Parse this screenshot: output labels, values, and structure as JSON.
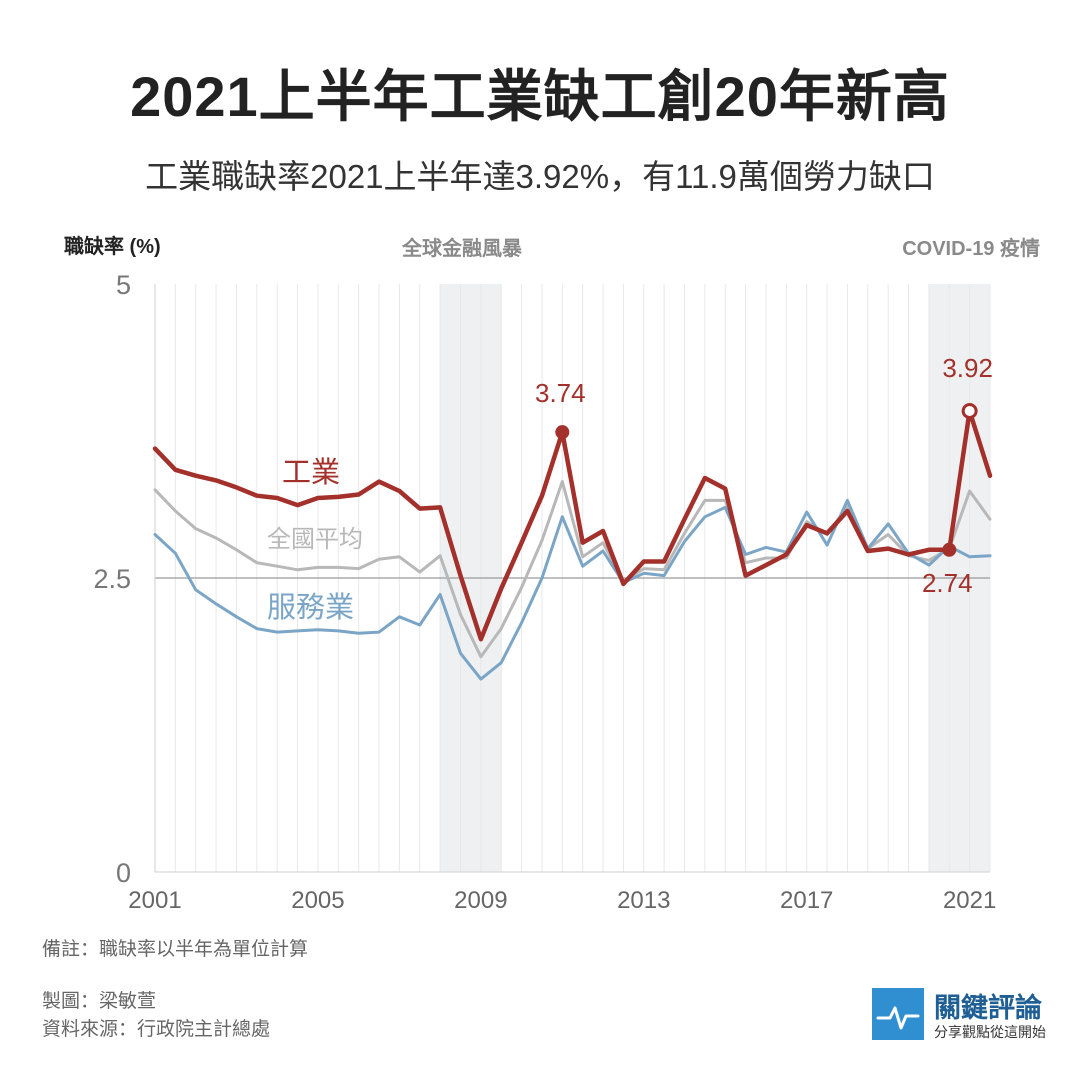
{
  "title": "2021上半年工業缺工創20年新高",
  "subtitle": "工業職缺率2021上半年達3.92%，有11.9萬個勞力缺口",
  "bands": [
    {
      "label": "全球金融風暴",
      "start": 2008.0,
      "end": 2009.5
    },
    {
      "label": "COVID-19 疫情",
      "start": 2020.0,
      "end": 2021.5
    }
  ],
  "notes": {
    "remark": "備註：職缺率以半年為單位計算",
    "author": "製圖：梁敏萱",
    "source": "資料來源：行政院主計總處"
  },
  "logo": {
    "name": "關鍵評論",
    "tagline": "分享觀點從這開始",
    "color": "#2f8fd0"
  },
  "chart_data": {
    "type": "line",
    "ylabel": "職缺率 (%)",
    "xlabel": "",
    "ylim": [
      0,
      5
    ],
    "yticks": [
      0,
      2.5,
      5
    ],
    "xlim": [
      2001,
      2021.5
    ],
    "xticks": [
      2001,
      2005,
      2009,
      2013,
      2017,
      2021
    ],
    "grid": "vertical lines each half-year, horizontal line at 2.5",
    "x": [
      2001.0,
      2001.5,
      2002.0,
      2002.5,
      2003.0,
      2003.5,
      2004.0,
      2004.5,
      2005.0,
      2005.5,
      2006.0,
      2006.5,
      2007.0,
      2007.5,
      2008.0,
      2008.5,
      2009.0,
      2009.5,
      2010.0,
      2010.5,
      2011.0,
      2011.5,
      2012.0,
      2012.5,
      2013.0,
      2013.5,
      2014.0,
      2014.5,
      2015.0,
      2015.5,
      2016.0,
      2016.5,
      2017.0,
      2017.5,
      2018.0,
      2018.5,
      2019.0,
      2019.5,
      2020.0,
      2020.5,
      2021.0,
      2021.5
    ],
    "series": [
      {
        "name": "工業",
        "color": "#a3302a",
        "values": [
          3.6,
          3.42,
          3.37,
          3.33,
          3.27,
          3.2,
          3.18,
          3.12,
          3.18,
          3.19,
          3.21,
          3.32,
          3.24,
          3.09,
          3.1,
          2.52,
          1.98,
          2.41,
          2.8,
          3.2,
          3.74,
          2.8,
          2.9,
          2.45,
          2.64,
          2.64,
          3.0,
          3.35,
          3.26,
          2.52,
          2.61,
          2.7,
          2.95,
          2.88,
          3.07,
          2.73,
          2.75,
          2.7,
          2.74,
          2.74,
          3.92,
          3.37
        ]
      },
      {
        "name": "全國平均",
        "color": "#b8b8b8",
        "values": [
          3.25,
          3.07,
          2.92,
          2.84,
          2.74,
          2.63,
          2.6,
          2.57,
          2.59,
          2.59,
          2.58,
          2.66,
          2.68,
          2.55,
          2.69,
          2.19,
          1.83,
          2.07,
          2.42,
          2.82,
          3.32,
          2.68,
          2.8,
          2.47,
          2.58,
          2.57,
          2.88,
          3.16,
          3.16,
          2.63,
          2.67,
          2.67,
          2.98,
          2.87,
          3.11,
          2.75,
          2.87,
          2.69,
          2.65,
          2.75,
          3.24,
          3.0
        ]
      },
      {
        "name": "服務業",
        "color": "#7ba5c7",
        "values": [
          2.87,
          2.71,
          2.4,
          2.28,
          2.17,
          2.07,
          2.04,
          2.05,
          2.06,
          2.05,
          2.03,
          2.04,
          2.17,
          2.1,
          2.36,
          1.86,
          1.64,
          1.78,
          2.12,
          2.5,
          3.02,
          2.6,
          2.73,
          2.46,
          2.54,
          2.52,
          2.81,
          3.02,
          3.1,
          2.7,
          2.76,
          2.72,
          3.06,
          2.78,
          3.16,
          2.75,
          2.96,
          2.71,
          2.61,
          2.77,
          2.68,
          2.69
        ]
      }
    ],
    "annotations": [
      {
        "text": "3.74",
        "x": 2011.0,
        "y": 3.74,
        "series": "工業",
        "marker": "filled"
      },
      {
        "text": "3.92",
        "x": 2021.0,
        "y": 3.92,
        "series": "工業",
        "marker": "open"
      },
      {
        "text": "2.74",
        "x": 2020.5,
        "y": 2.74,
        "series": "工業",
        "marker": "filled"
      }
    ]
  }
}
